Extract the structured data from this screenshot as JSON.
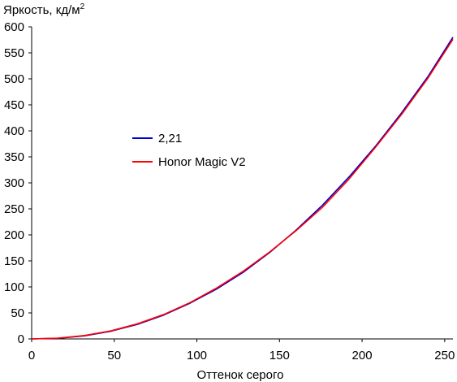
{
  "chart_data": {
    "type": "line",
    "title": "",
    "ylabel": "Яркость, кд/м",
    "ylabel_superscript": "2",
    "xlabel": "Оттенок серого",
    "xlim": [
      0,
      255
    ],
    "ylim": [
      0,
      600
    ],
    "xticks": [
      "0",
      "50",
      "100",
      "150",
      "200",
      "250"
    ],
    "yticks": [
      "0",
      "50",
      "100",
      "150",
      "200",
      "250",
      "300",
      "350",
      "400",
      "450",
      "500",
      "550",
      "600"
    ],
    "grid": false,
    "legend_position": "center-left",
    "series": [
      {
        "name": "2,21",
        "color": "#0000cc",
        "x": [
          0,
          16,
          32,
          48,
          64,
          80,
          96,
          112,
          128,
          144,
          160,
          176,
          192,
          208,
          224,
          240,
          255
        ],
        "y": [
          0,
          1.3,
          6,
          14.8,
          28,
          46,
          69,
          96,
          128,
          166,
          209,
          257,
          311,
          370,
          435,
          505,
          580
        ]
      },
      {
        "name": "Honor Magic V2",
        "color": "#ff0000",
        "x": [
          0,
          16,
          32,
          48,
          64,
          80,
          96,
          112,
          128,
          144,
          160,
          176,
          192,
          208,
          224,
          240,
          255
        ],
        "y": [
          0,
          1.5,
          6.5,
          15.5,
          29,
          47,
          70,
          98,
          130,
          167,
          208,
          253,
          307,
          368,
          432,
          502,
          576
        ]
      }
    ]
  }
}
